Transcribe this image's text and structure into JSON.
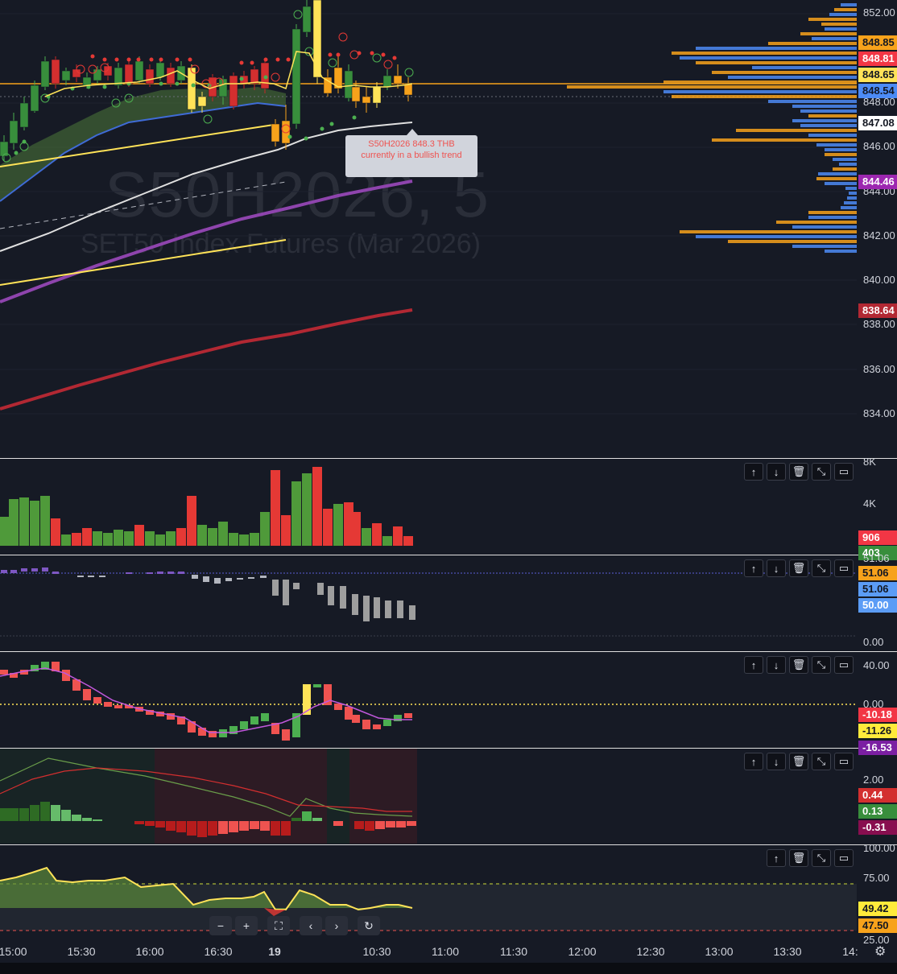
{
  "symbol": {
    "watermark_title": "S50H2026, 5",
    "watermark_subtitle": "SET50 Index Futures (Mar 2026)"
  },
  "tooltip": {
    "line1": "S50H2026 848.3 THB",
    "line2": "currently in a bullish trend"
  },
  "price_axis": {
    "ticks": [
      "852.00",
      "848.00",
      "846.00",
      "844.00",
      "842.00",
      "840.00",
      "838.00",
      "836.00",
      "834.00"
    ],
    "tags": [
      {
        "text": "848.85",
        "bg": "#f7a21b",
        "fg": "#131722"
      },
      {
        "text": "848.81",
        "bg": "#f23645",
        "fg": "#ffffff"
      },
      {
        "text": "848.65",
        "bg": "#ffe358",
        "fg": "#131722"
      },
      {
        "text": "848.54",
        "bg": "#4c8bf5",
        "fg": "#131722"
      },
      {
        "text": "847.08",
        "bg": "#ffffff",
        "fg": "#131722"
      },
      {
        "text": "844.46",
        "bg": "#9c27b0",
        "fg": "#ffffff"
      },
      {
        "text": "838.64",
        "bg": "#b22833",
        "fg": "#ffffff"
      }
    ]
  },
  "volume_pane": {
    "ticks": [
      "8K",
      "4K"
    ],
    "tags": [
      {
        "text": "906",
        "bg": "#f23645",
        "fg": "#ffffff"
      },
      {
        "text": "403",
        "bg": "#388e3c",
        "fg": "#ffffff"
      }
    ]
  },
  "osc_pane": {
    "ticks": [
      "51.06",
      "0.00"
    ],
    "tags": [
      {
        "text": "51.06",
        "bg": "#f7a21b",
        "fg": "#131722"
      },
      {
        "text": "51.06",
        "bg": "#5b9cf6",
        "fg": "#131722"
      },
      {
        "text": "50.00",
        "bg": "#5b9cf6",
        "fg": "#ffffff"
      }
    ]
  },
  "momentum_pane": {
    "ticks": [
      "40.00",
      "0.00"
    ],
    "tags": [
      {
        "text": "-10.18",
        "bg": "#f23645",
        "fg": "#ffffff"
      },
      {
        "text": "-11.26",
        "bg": "#ffeb3b",
        "fg": "#131722"
      },
      {
        "text": "-16.53",
        "bg": "#7b1fa2",
        "fg": "#ffffff"
      }
    ]
  },
  "macd_pane": {
    "ticks": [
      "2.00"
    ],
    "tags": [
      {
        "text": "0.44",
        "bg": "#d32f2f",
        "fg": "#ffffff"
      },
      {
        "text": "0.13",
        "bg": "#388e3c",
        "fg": "#ffffff"
      },
      {
        "text": "-0.31",
        "bg": "#880e4f",
        "fg": "#ffffff"
      }
    ]
  },
  "rsi_pane": {
    "ticks": [
      "100.00",
      "75.00",
      "25.00"
    ],
    "tags": [
      {
        "text": "49.42",
        "bg": "#ffeb3b",
        "fg": "#131722"
      },
      {
        "text": "47.50",
        "bg": "#f7a21b",
        "fg": "#131722"
      }
    ]
  },
  "pane_buttons": {
    "up": "↑",
    "down": "↓",
    "delete": "🗑",
    "collapse": "⤡",
    "maximize": "▭"
  },
  "navigation": {
    "zoom_out": "−",
    "zoom_in": "+",
    "fit": "⛶",
    "scroll_left": "‹",
    "scroll_right": "›",
    "reset": "↻"
  },
  "time_axis": {
    "labels": [
      "15:00",
      "15:30",
      "16:00",
      "16:30",
      "19",
      "10:30",
      "11:00",
      "11:30",
      "12:00",
      "12:30",
      "13:00",
      "13:30",
      "14:"
    ],
    "settings_icon": "⚙"
  }
}
